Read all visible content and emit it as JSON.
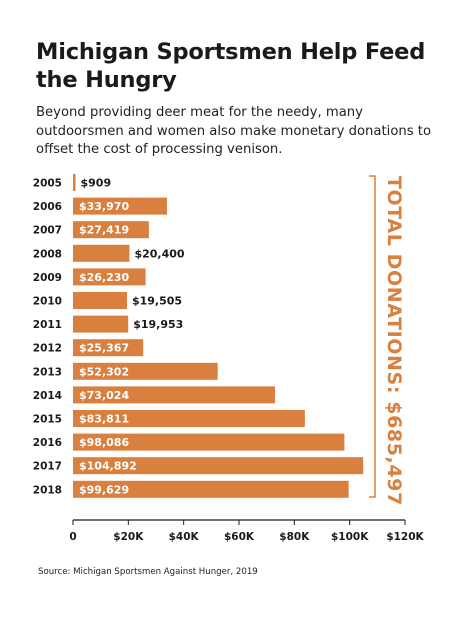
{
  "colors": {
    "bar": "#d9803e",
    "axis": "#1a1a1a",
    "accent": "#d9803e",
    "bracket": "#d9803e"
  },
  "chart_data": {
    "type": "bar",
    "orientation": "horizontal",
    "title": "Michigan Sportsmen Help Feed the Hungry",
    "subtitle": "Beyond providing deer meat for the needy, many outdoorsmen and women also make monetary donations to offset the cost of processing venison.",
    "categories": [
      "2005",
      "2006",
      "2007",
      "2008",
      "2009",
      "2010",
      "2011",
      "2012",
      "2013",
      "2014",
      "2015",
      "2016",
      "2017",
      "2018"
    ],
    "values": [
      909,
      33970,
      27419,
      20400,
      26230,
      19505,
      19953,
      25367,
      52302,
      73024,
      83811,
      98086,
      104892,
      99629
    ],
    "value_labels": [
      "$909",
      "$33,970",
      "$27,419",
      "$20,400",
      "$26,230",
      "$19,505",
      "$19,953",
      "$25,367",
      "$52,302",
      "$73,024",
      "$83,811",
      "$98,086",
      "$104,892",
      "$99,629"
    ],
    "xlim": [
      0,
      120000
    ],
    "xticks": [
      0,
      20000,
      40000,
      60000,
      80000,
      100000,
      120000
    ],
    "xtick_labels": [
      "0",
      "$20K",
      "$40K",
      "$60K",
      "$80K",
      "$100K",
      "$120K"
    ],
    "grid": false,
    "annotation": "TOTAL DONATIONS: $685,497",
    "source": "Source: Michigan Sportsmen Against Hunger, 2019"
  }
}
